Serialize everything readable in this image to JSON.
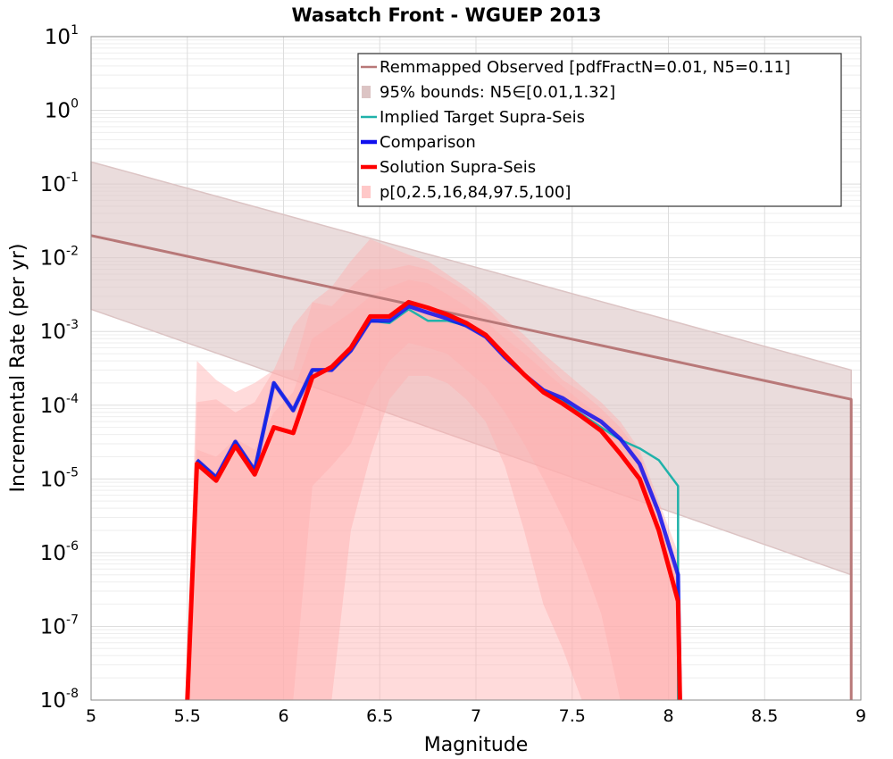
{
  "chart_data": {
    "type": "line",
    "title": "Wasatch Front - WGUEP 2013",
    "xlabel": "Magnitude",
    "ylabel": "Incremental Rate (per yr)",
    "xlim": [
      5,
      9
    ],
    "ylim": [
      1e-08,
      10
    ],
    "yscale": "log",
    "grid": true,
    "legend_position": "top-right",
    "x_ticks": [
      "5",
      "5.5",
      "6",
      "6.5",
      "7",
      "7.5",
      "8",
      "8.5",
      "9"
    ],
    "y_tick_base": "10",
    "y_tick_exponents": [
      "-8",
      "-7",
      "-6",
      "-5",
      "-4",
      "-3",
      "-2",
      "-1",
      "0",
      "1"
    ],
    "colors": {
      "observed": "#b87878",
      "bounds": "#dcc4c4",
      "target": "#20b2aa",
      "comparison": "#1010ee",
      "solution": "#ff0000",
      "fractile_bands": "#ffb0b0"
    },
    "legend": [
      {
        "label": "Remmapped Observed [pdfFractN=0.01, N5=0.11]",
        "color": "#b87878",
        "style": "line"
      },
      {
        "label": "95% bounds: N5∈[0.01,1.32]",
        "color": "#dcc4c4",
        "style": "box"
      },
      {
        "label": "Implied Target Supra-Seis",
        "color": "#20b2aa",
        "style": "line"
      },
      {
        "label": "Comparison",
        "color": "#1010ee",
        "style": "thick"
      },
      {
        "label": "Solution Supra-Seis",
        "color": "#ff0000",
        "style": "thick"
      },
      {
        "label": "p[0,2.5,16,84,97.5,100]",
        "color": "#ffc8c8",
        "style": "box"
      }
    ],
    "series": [
      {
        "name": "Remmapped Observed [pdfFractN=0.01, N5=0.11]",
        "x": [
          5.0,
          8.95,
          8.95
        ],
        "y": [
          0.02,
          0.00012,
          1e-08
        ]
      },
      {
        "name": "95% bounds: N5∈[0.01,1.32]",
        "x": [
          5.0,
          8.95
        ],
        "lower": [
          0.002,
          5e-07
        ],
        "upper": [
          0.2,
          0.0003
        ]
      },
      {
        "name": "Implied Target Supra-Seis",
        "x": [
          5.55,
          5.65,
          5.75,
          5.85,
          5.95,
          6.05,
          6.15,
          6.25,
          6.35,
          6.45,
          6.55,
          6.65,
          6.75,
          6.85,
          6.95,
          7.05,
          7.15,
          7.25,
          7.35,
          7.45,
          7.55,
          7.65,
          7.75,
          7.85,
          7.95,
          8.05,
          8.05
        ],
        "y": [
          1.8e-05,
          1.05e-05,
          3.2e-05,
          1.3e-05,
          0.0002,
          8.5e-05,
          0.0003,
          0.0003,
          0.00055,
          0.0014,
          0.0013,
          0.002,
          0.0014,
          0.0014,
          0.0012,
          0.00085,
          0.00045,
          0.00027,
          0.00016,
          0.000115,
          7.5e-05,
          5e-05,
          3.4e-05,
          2.6e-05,
          1.8e-05,
          8e-06,
          1e-08
        ]
      },
      {
        "name": "Comparison",
        "x": [
          5.55,
          5.65,
          5.75,
          5.85,
          5.95,
          6.05,
          6.15,
          6.25,
          6.35,
          6.45,
          6.55,
          6.65,
          6.75,
          6.85,
          6.95,
          7.05,
          7.15,
          7.25,
          7.35,
          7.45,
          7.55,
          7.65,
          7.75,
          7.85,
          7.95,
          8.05,
          8.06
        ],
        "y": [
          1.8e-05,
          1.05e-05,
          3.2e-05,
          1.3e-05,
          0.0002,
          8.5e-05,
          0.0003,
          0.0003,
          0.00055,
          0.0014,
          0.0014,
          0.0022,
          0.0018,
          0.0015,
          0.0012,
          0.00085,
          0.00045,
          0.00026,
          0.00016,
          0.000125,
          8.5e-05,
          6e-05,
          3.5e-05,
          1.6e-05,
          3.5e-06,
          5e-07,
          1e-08
        ]
      },
      {
        "name": "Solution Supra-Seis",
        "x": [
          5.5,
          5.55,
          5.65,
          5.75,
          5.85,
          5.95,
          6.05,
          6.15,
          6.25,
          6.35,
          6.45,
          6.55,
          6.65,
          6.75,
          6.85,
          6.95,
          7.05,
          7.15,
          7.25,
          7.35,
          7.45,
          7.55,
          7.65,
          7.75,
          7.85,
          7.95,
          8.05,
          8.06
        ],
        "y": [
          1e-08,
          1.6e-05,
          9.5e-06,
          2.8e-05,
          1.15e-05,
          5e-05,
          4.2e-05,
          0.00024,
          0.00033,
          0.0006,
          0.0016,
          0.0016,
          0.0025,
          0.0021,
          0.0017,
          0.0013,
          0.0009,
          0.00048,
          0.00026,
          0.00015,
          0.000105,
          7e-05,
          4.5e-05,
          2.2e-05,
          1e-05,
          2e-06,
          2.2e-07,
          1e-08
        ]
      }
    ],
    "fractile_bands": [
      {
        "name": "p0-p100",
        "x": [
          5.5,
          5.55,
          5.65,
          5.75,
          5.85,
          5.95,
          6.05,
          6.15,
          6.25,
          6.35,
          6.45,
          6.55,
          6.65,
          6.75,
          6.85,
          6.95,
          7.05,
          7.15,
          7.25,
          7.35,
          7.45,
          7.55,
          7.65,
          7.75,
          7.85,
          7.95,
          8.05,
          8.06
        ],
        "lower": [
          1e-08,
          1e-08,
          1e-08,
          1e-08,
          1e-08,
          1e-08,
          1e-08,
          1e-08,
          1e-08,
          1e-08,
          1e-08,
          1e-08,
          1e-08,
          1e-08,
          1e-08,
          1e-08,
          1e-08,
          1e-08,
          1e-08,
          1e-08,
          1e-08,
          1e-08,
          1e-08,
          1e-08,
          1e-08,
          1e-08,
          1e-08,
          1e-08
        ],
        "upper": [
          1e-08,
          0.0004,
          0.00022,
          0.00015,
          0.0002,
          0.0003,
          0.0012,
          0.0025,
          0.004,
          0.009,
          0.018,
          0.014,
          0.011,
          0.009,
          0.006,
          0.004,
          0.0025,
          0.0015,
          0.0009,
          0.0005,
          0.0003,
          0.00018,
          0.00011,
          6e-05,
          2.5e-05,
          5e-06,
          1e-06,
          1e-08
        ]
      },
      {
        "name": "p2.5-p97.5",
        "x": [
          5.5,
          5.55,
          5.65,
          5.75,
          5.85,
          5.95,
          6.05,
          6.15,
          6.25,
          6.35,
          6.45,
          6.55,
          6.65,
          6.75,
          6.85,
          6.95,
          7.05,
          7.15,
          7.25,
          7.35,
          7.45,
          7.55,
          7.65,
          7.75,
          7.85,
          7.95,
          8.05,
          8.06
        ],
        "lower": [
          1e-08,
          1e-08,
          1e-08,
          1e-08,
          1e-08,
          1e-08,
          1e-08,
          1e-08,
          1e-08,
          2e-06,
          2e-05,
          0.00012,
          0.00025,
          0.00025,
          0.0002,
          0.00012,
          6e-05,
          1.5e-05,
          2e-06,
          2e-07,
          5e-08,
          1e-08,
          1e-08,
          1e-08,
          1e-08,
          1e-08,
          1e-08,
          1e-08
        ],
        "upper": [
          1e-08,
          0.00011,
          0.00012,
          8e-05,
          0.00011,
          0.0003,
          0.0003,
          0.0025,
          0.0022,
          0.004,
          0.007,
          0.007,
          0.008,
          0.007,
          0.005,
          0.0035,
          0.0022,
          0.0012,
          0.0007,
          0.0004,
          0.00022,
          0.00015,
          9e-05,
          5e-05,
          2.2e-05,
          4e-06,
          6e-07,
          1e-08
        ]
      },
      {
        "name": "p16-p84",
        "x": [
          5.5,
          5.55,
          5.65,
          5.75,
          5.85,
          5.95,
          6.05,
          6.15,
          6.25,
          6.35,
          6.45,
          6.55,
          6.65,
          6.75,
          6.85,
          6.95,
          7.05,
          7.15,
          7.25,
          7.35,
          7.45,
          7.55,
          7.65,
          7.75,
          7.85,
          7.95,
          8.05,
          8.06
        ],
        "lower": [
          1e-08,
          1e-08,
          1e-08,
          1e-08,
          1e-08,
          1e-08,
          1e-08,
          8e-06,
          1.5e-05,
          3e-05,
          0.00015,
          0.0004,
          0.0007,
          0.0006,
          0.0005,
          0.0003,
          0.00018,
          8e-05,
          3e-05,
          1e-05,
          3e-06,
          8e-07,
          1.5e-07,
          1e-08,
          1e-08,
          1e-08,
          1e-08,
          1e-08
        ],
        "upper": [
          1e-08,
          2.5e-05,
          2e-05,
          3.5e-05,
          2.5e-05,
          8e-05,
          0.00015,
          0.0008,
          0.0012,
          0.0018,
          0.003,
          0.004,
          0.005,
          0.0045,
          0.0032,
          0.0022,
          0.0014,
          0.0008,
          0.0005,
          0.0003,
          0.00018,
          0.00011,
          7e-05,
          4e-05,
          1.8e-05,
          3e-06,
          4e-07,
          1e-08
        ]
      }
    ]
  }
}
